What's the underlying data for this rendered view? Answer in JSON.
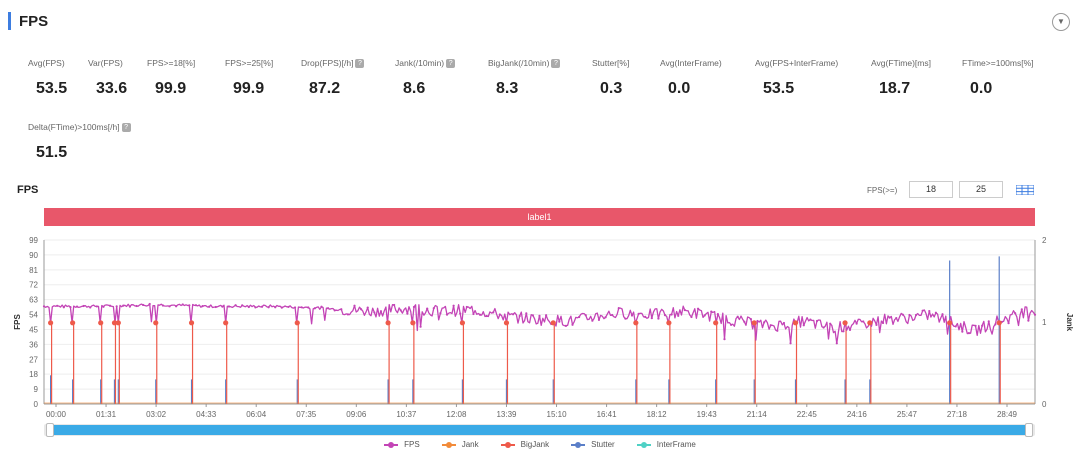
{
  "header": {
    "title": "FPS"
  },
  "metrics": [
    {
      "label": "Avg(FPS)",
      "value": "53.5",
      "help": false
    },
    {
      "label": "Var(FPS)",
      "value": "33.6",
      "help": false
    },
    {
      "label": "FPS>=18[%]",
      "value": "99.9",
      "help": false
    },
    {
      "label": "FPS>=25[%]",
      "value": "99.9",
      "help": false
    },
    {
      "label": "Drop(FPS)[/h]",
      "value": "87.2",
      "help": true
    },
    {
      "label": "Jank(/10min)",
      "value": "8.6",
      "help": true
    },
    {
      "label": "BigJank(/10min)",
      "value": "8.3",
      "help": true
    },
    {
      "label": "Stutter[%]",
      "value": "0.3",
      "help": false
    },
    {
      "label": "Avg(InterFrame)",
      "value": "0.0",
      "help": false
    },
    {
      "label": "Avg(FPS+InterFrame)",
      "value": "53.5",
      "help": false
    },
    {
      "label": "Avg(FTime)[ms]",
      "value": "18.7",
      "help": false
    },
    {
      "label": "FTime>=100ms[%]",
      "value": "0.0",
      "help": false
    },
    {
      "label": "Delta(FTime)>100ms[/h]",
      "value": "51.5",
      "help": true
    }
  ],
  "chart_section": {
    "title": "FPS",
    "threshold_label": "FPS(>=)",
    "threshold_1": "18",
    "threshold_2": "25",
    "band_label": "label1"
  },
  "colors": {
    "fps": "#c344b6",
    "jank": "#f28b3a",
    "bigjank": "#ee5a4a",
    "stutter": "#5b7fc8",
    "interframe": "#4fd1c5",
    "band": "#e8576a",
    "slider": "#3aaae6"
  },
  "chart_data": {
    "type": "line",
    "title": "FPS",
    "ylabel": "FPS",
    "y2label": "Jank",
    "ylim": [
      0,
      99
    ],
    "y2lim": [
      0,
      2
    ],
    "y_ticks": [
      0,
      9,
      18,
      27,
      36,
      45,
      54,
      63,
      72,
      81,
      90,
      99
    ],
    "y2_ticks": [
      0,
      1,
      2
    ],
    "x_ticks": [
      "00:00",
      "01:31",
      "03:02",
      "04:33",
      "06:04",
      "07:35",
      "09:06",
      "10:37",
      "12:08",
      "13:39",
      "15:10",
      "16:41",
      "18:12",
      "19:43",
      "21:14",
      "22:45",
      "24:16",
      "25:47",
      "27:18",
      "28:49"
    ],
    "x_range_seconds": [
      0,
      1800
    ],
    "fps_profile": [
      {
        "t": 0,
        "fps": 59
      },
      {
        "t": 100,
        "fps": 59
      },
      {
        "t": 200,
        "fps": 60
      },
      {
        "t": 300,
        "fps": 59
      },
      {
        "t": 420,
        "fps": 59
      },
      {
        "t": 500,
        "fps": 58
      },
      {
        "t": 540,
        "fps": 57
      },
      {
        "t": 600,
        "fps": 56
      },
      {
        "t": 660,
        "fps": 58
      },
      {
        "t": 720,
        "fps": 56
      },
      {
        "t": 780,
        "fps": 57
      },
      {
        "t": 840,
        "fps": 53
      },
      {
        "t": 900,
        "fps": 51
      },
      {
        "t": 960,
        "fps": 50
      },
      {
        "t": 1000,
        "fps": 53
      },
      {
        "t": 1050,
        "fps": 55
      },
      {
        "t": 1110,
        "fps": 54
      },
      {
        "t": 1160,
        "fps": 56
      },
      {
        "t": 1200,
        "fps": 54
      },
      {
        "t": 1260,
        "fps": 50
      },
      {
        "t": 1320,
        "fps": 47
      },
      {
        "t": 1380,
        "fps": 50
      },
      {
        "t": 1430,
        "fps": 46
      },
      {
        "t": 1470,
        "fps": 47
      },
      {
        "t": 1520,
        "fps": 51
      },
      {
        "t": 1570,
        "fps": 52
      },
      {
        "t": 1610,
        "fps": 54
      },
      {
        "t": 1650,
        "fps": 49
      },
      {
        "t": 1690,
        "fps": 44
      },
      {
        "t": 1730,
        "fps": 50
      },
      {
        "t": 1760,
        "fps": 53
      },
      {
        "t": 1790,
        "fps": 56
      },
      {
        "t": 1800,
        "fps": 57
      }
    ],
    "jank_events_seconds": [
      12,
      52,
      103,
      128,
      135,
      203,
      268,
      330,
      460,
      625,
      670,
      760,
      840,
      925,
      1075,
      1135,
      1220,
      1290,
      1365,
      1455,
      1500,
      1645,
      1735
    ],
    "bigjank_events_seconds": [
      12,
      52,
      103,
      128,
      135,
      203,
      268,
      330,
      460,
      625,
      670,
      760,
      840,
      925,
      1075,
      1135,
      1220,
      1290,
      1365,
      1455,
      1500,
      1645,
      1735
    ],
    "stutter_events": [
      {
        "t": 12,
        "v": 0.35
      },
      {
        "t": 52,
        "v": 0.3
      },
      {
        "t": 103,
        "v": 0.3
      },
      {
        "t": 128,
        "v": 0.3
      },
      {
        "t": 135,
        "v": 0.3
      },
      {
        "t": 203,
        "v": 0.3
      },
      {
        "t": 268,
        "v": 0.3
      },
      {
        "t": 330,
        "v": 0.3
      },
      {
        "t": 460,
        "v": 0.3
      },
      {
        "t": 625,
        "v": 0.3
      },
      {
        "t": 670,
        "v": 0.3
      },
      {
        "t": 760,
        "v": 0.3
      },
      {
        "t": 840,
        "v": 0.3
      },
      {
        "t": 925,
        "v": 0.3
      },
      {
        "t": 1075,
        "v": 0.3
      },
      {
        "t": 1135,
        "v": 0.3
      },
      {
        "t": 1220,
        "v": 0.3
      },
      {
        "t": 1290,
        "v": 0.3
      },
      {
        "t": 1365,
        "v": 0.3
      },
      {
        "t": 1455,
        "v": 0.3
      },
      {
        "t": 1500,
        "v": 0.3
      },
      {
        "t": 1645,
        "v": 1.75
      },
      {
        "t": 1735,
        "v": 1.8
      }
    ],
    "series": [
      {
        "name": "FPS"
      },
      {
        "name": "Jank"
      },
      {
        "name": "BigJank"
      },
      {
        "name": "Stutter"
      },
      {
        "name": "InterFrame"
      }
    ]
  }
}
